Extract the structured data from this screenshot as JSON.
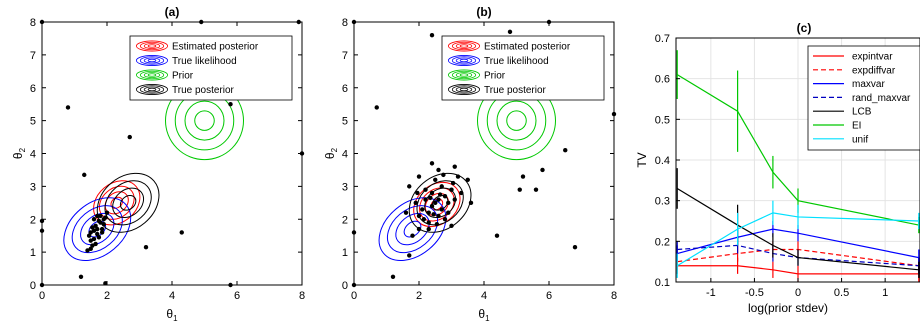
{
  "chart_data": [
    {
      "type": "scatter",
      "title": "(a)",
      "xlabel": "θ",
      "xlabel_sub": "1",
      "ylabel": "θ",
      "ylabel_sub": "2",
      "xlim": [
        0,
        8
      ],
      "ylim": [
        0,
        8
      ],
      "xticks": [
        "0",
        "2",
        "4",
        "6",
        "8"
      ],
      "yticks": [
        "0",
        "1",
        "2",
        "3",
        "4",
        "5",
        "6",
        "7",
        "8"
      ],
      "grid": false,
      "legend_position": "top-right",
      "legend": [
        {
          "label": "Estimated posterior",
          "color": "#ff0000"
        },
        {
          "label": "True likelihood",
          "color": "#0000ff"
        },
        {
          "label": "Prior",
          "color": "#00c800"
        },
        {
          "label": "True posterior",
          "color": "#000000"
        }
      ],
      "contours": [
        {
          "series": "Estimated posterior",
          "center": [
            2.3,
            2.5
          ],
          "radii": [
            0.15,
            0.3,
            0.45,
            0.6
          ],
          "aspect": 1.3,
          "angle": 40
        },
        {
          "series": "True likelihood",
          "center": [
            1.7,
            1.7
          ],
          "radii": [
            0.2,
            0.4,
            0.6,
            0.8
          ],
          "aspect": 1.45,
          "angle": 40
        },
        {
          "series": "Prior",
          "center": [
            5.0,
            5.0
          ],
          "radii": [
            0.3,
            0.6,
            0.9,
            1.2
          ],
          "aspect": 1.0,
          "angle": 0
        },
        {
          "series": "True posterior",
          "center": [
            2.65,
            2.5
          ],
          "radii": [
            0.2,
            0.4,
            0.6,
            0.8
          ],
          "aspect": 1.3,
          "angle": 40
        }
      ],
      "points": [
        [
          1.6,
          2.0
        ],
        [
          1.7,
          2.1
        ],
        [
          1.8,
          1.9
        ],
        [
          1.9,
          2.0
        ],
        [
          1.5,
          1.6
        ],
        [
          1.55,
          1.75
        ],
        [
          1.45,
          1.5
        ],
        [
          1.7,
          1.55
        ],
        [
          1.65,
          1.8
        ],
        [
          1.85,
          1.7
        ],
        [
          2.0,
          2.2
        ],
        [
          1.6,
          1.4
        ],
        [
          1.55,
          1.2
        ],
        [
          1.75,
          1.95
        ],
        [
          1.9,
          1.85
        ],
        [
          1.8,
          2.1
        ],
        [
          1.5,
          1.35
        ],
        [
          1.7,
          1.7
        ],
        [
          1.95,
          2.05
        ],
        [
          1.6,
          1.65
        ],
        [
          1.5,
          1.1
        ],
        [
          1.4,
          1.05
        ],
        [
          1.75,
          1.45
        ],
        [
          1.85,
          1.6
        ],
        [
          1.65,
          1.25
        ],
        [
          1.3,
          3.35
        ],
        [
          1.2,
          0.25
        ],
        [
          1.95,
          0.05
        ],
        [
          3.2,
          1.15
        ],
        [
          4.3,
          1.6
        ],
        [
          5.8,
          0.0
        ],
        [
          0.0,
          1.65
        ],
        [
          0.0,
          1.95
        ],
        [
          0.8,
          5.4
        ],
        [
          2.7,
          4.5
        ],
        [
          3.0,
          6.95
        ],
        [
          5.8,
          5.5
        ],
        [
          8.0,
          4.0
        ],
        [
          0.0,
          8.0
        ],
        [
          4.9,
          8.0
        ],
        [
          7.9,
          8.0
        ],
        [
          0.0,
          0.0
        ]
      ]
    },
    {
      "type": "scatter",
      "title": "(b)",
      "xlabel": "θ",
      "xlabel_sub": "1",
      "ylabel": "θ",
      "ylabel_sub": "2",
      "xlim": [
        0,
        8
      ],
      "ylim": [
        0,
        8
      ],
      "xticks": [
        "0",
        "2",
        "4",
        "6",
        "8"
      ],
      "yticks": [
        "0",
        "1",
        "2",
        "3",
        "4",
        "5",
        "6",
        "7",
        "8"
      ],
      "grid": false,
      "legend_position": "top-right",
      "legend": [
        {
          "label": "Estimated posterior",
          "color": "#ff0000"
        },
        {
          "label": "True likelihood",
          "color": "#0000ff"
        },
        {
          "label": "Prior",
          "color": "#00c800"
        },
        {
          "label": "True posterior",
          "color": "#000000"
        }
      ],
      "contours": [
        {
          "series": "Estimated posterior",
          "center": [
            2.55,
            2.45
          ],
          "radii": [
            0.15,
            0.3,
            0.45,
            0.6
          ],
          "aspect": 1.3,
          "angle": 40
        },
        {
          "series": "True likelihood",
          "center": [
            1.8,
            1.7
          ],
          "radii": [
            0.2,
            0.4,
            0.6,
            0.8
          ],
          "aspect": 1.45,
          "angle": 40
        },
        {
          "series": "Prior",
          "center": [
            5.0,
            5.0
          ],
          "radii": [
            0.3,
            0.6,
            0.9,
            1.2
          ],
          "aspect": 1.0,
          "angle": 0
        },
        {
          "series": "True posterior",
          "center": [
            2.65,
            2.5
          ],
          "radii": [
            0.2,
            0.4,
            0.6,
            0.8
          ],
          "aspect": 1.3,
          "angle": 40
        }
      ],
      "points": [
        [
          2.4,
          2.4
        ],
        [
          2.6,
          2.6
        ],
        [
          2.7,
          2.3
        ],
        [
          2.5,
          2.5
        ],
        [
          2.3,
          2.2
        ],
        [
          2.8,
          2.7
        ],
        [
          2.2,
          2.6
        ],
        [
          2.6,
          2.1
        ],
        [
          2.9,
          2.5
        ],
        [
          2.4,
          2.8
        ],
        [
          2.1,
          2.3
        ],
        [
          3.0,
          2.9
        ],
        [
          2.0,
          2.1
        ],
        [
          2.7,
          3.0
        ],
        [
          2.3,
          1.9
        ],
        [
          3.1,
          2.6
        ],
        [
          2.5,
          3.2
        ],
        [
          1.9,
          2.5
        ],
        [
          2.8,
          2.0
        ],
        [
          3.2,
          3.3
        ],
        [
          2.2,
          2.9
        ],
        [
          2.45,
          2.15
        ],
        [
          2.65,
          2.75
        ],
        [
          2.35,
          2.65
        ],
        [
          2.9,
          2.2
        ],
        [
          2.15,
          2.0
        ],
        [
          3.05,
          3.1
        ],
        [
          2.55,
          1.85
        ],
        [
          1.95,
          2.8
        ],
        [
          2.75,
          3.35
        ],
        [
          3.3,
          2.8
        ],
        [
          2.6,
          3.5
        ],
        [
          2.0,
          3.3
        ],
        [
          3.1,
          3.6
        ],
        [
          1.8,
          1.5
        ],
        [
          2.3,
          1.7
        ],
        [
          1.6,
          2.2
        ],
        [
          2.0,
          1.7
        ],
        [
          3.5,
          3.2
        ],
        [
          3.0,
          1.8
        ],
        [
          1.7,
          3.0
        ],
        [
          3.6,
          2.5
        ],
        [
          2.4,
          3.7
        ],
        [
          1.7,
          0.9
        ],
        [
          1.2,
          0.25
        ],
        [
          4.4,
          1.5
        ],
        [
          5.1,
          2.9
        ],
        [
          5.2,
          3.3
        ],
        [
          5.6,
          2.9
        ],
        [
          5.8,
          3.5
        ],
        [
          6.5,
          4.1
        ],
        [
          6.8,
          1.15
        ],
        [
          6.0,
          8.0
        ],
        [
          8.0,
          5.2
        ],
        [
          4.0,
          6.2
        ],
        [
          2.4,
          7.6
        ],
        [
          4.8,
          7.7
        ],
        [
          0.7,
          5.4
        ],
        [
          0.0,
          1.6
        ],
        [
          0.0,
          0.0
        ],
        [
          0.0,
          8.0
        ]
      ]
    },
    {
      "type": "line",
      "title": "(c)",
      "xlabel": "log(prior stdev)",
      "ylabel": "TV",
      "xlim": [
        -1.4,
        1.4
      ],
      "ylim": [
        0.1,
        0.7
      ],
      "xticks": [
        "-1",
        "-0.5",
        "0",
        "0.5",
        "1"
      ],
      "yticks": [
        "0.1",
        "0.2",
        "0.3",
        "0.4",
        "0.5",
        "0.6",
        "0.7"
      ],
      "grid": true,
      "legend_position": "top-right",
      "x": [
        -1.386,
        -0.693,
        -0.288,
        0.0,
        1.386
      ],
      "series": [
        {
          "name": "expintvar",
          "color": "#ff0000",
          "dash": "solid",
          "values": [
            0.14,
            0.14,
            0.13,
            0.12,
            0.12
          ],
          "err": [
            0.02,
            0.02,
            0.02,
            0.02,
            0.02
          ]
        },
        {
          "name": "expdiffvar",
          "color": "#ff0000",
          "dash": "dashed",
          "values": [
            0.15,
            0.17,
            0.18,
            0.18,
            0.14
          ],
          "err": [
            0.02,
            0.02,
            0.02,
            0.02,
            0.02
          ]
        },
        {
          "name": "maxvar",
          "color": "#0000ff",
          "dash": "solid",
          "values": [
            0.17,
            0.21,
            0.23,
            0.22,
            0.16
          ],
          "err": [
            0.02,
            0.02,
            0.02,
            0.02,
            0.02
          ]
        },
        {
          "name": "rand_maxvar",
          "color": "#0000c0",
          "dash": "dashed",
          "values": [
            0.18,
            0.19,
            0.17,
            0.16,
            0.14
          ],
          "err": [
            0.02,
            0.02,
            0.02,
            0.02,
            0.02
          ]
        },
        {
          "name": "LCB",
          "color": "#000000",
          "dash": "solid",
          "values": [
            0.33,
            0.24,
            0.19,
            0.16,
            0.13
          ],
          "err": [
            0.05,
            0.05,
            0.03,
            0.02,
            0.02
          ]
        },
        {
          "name": "EI",
          "color": "#00c800",
          "dash": "solid",
          "values": [
            0.61,
            0.52,
            0.37,
            0.3,
            0.24
          ],
          "err": [
            0.06,
            0.1,
            0.04,
            0.03,
            0.02
          ]
        },
        {
          "name": "unif",
          "color": "#00e0ff",
          "dash": "solid",
          "values": [
            0.14,
            0.23,
            0.27,
            0.26,
            0.25
          ],
          "err": [
            0.03,
            0.04,
            0.03,
            0.03,
            0.02
          ]
        }
      ]
    }
  ]
}
